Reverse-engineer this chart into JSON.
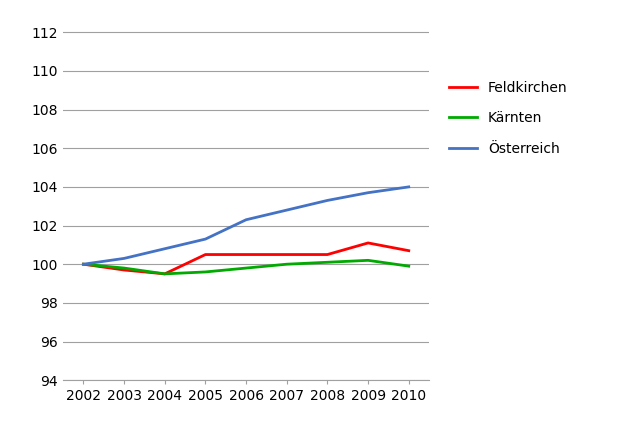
{
  "years": [
    2002,
    2003,
    2004,
    2005,
    2006,
    2007,
    2008,
    2009,
    2010
  ],
  "feldkirchen": [
    100.0,
    99.7,
    99.5,
    100.5,
    100.5,
    100.5,
    100.5,
    101.1,
    100.7
  ],
  "kaernten": [
    100.0,
    99.8,
    99.5,
    99.6,
    99.8,
    100.0,
    100.1,
    100.2,
    99.9
  ],
  "oesterreich": [
    100.0,
    100.3,
    100.8,
    101.3,
    102.3,
    102.8,
    103.3,
    103.7,
    104.0
  ],
  "colors": {
    "feldkirchen": "#ff0000",
    "kaernten": "#00aa00",
    "oesterreich": "#4472c4"
  },
  "legend_labels": [
    "Feldkirchen",
    "Kärnten",
    "Österreich"
  ],
  "ylim": [
    94,
    113
  ],
  "yticks": [
    94,
    96,
    98,
    100,
    102,
    104,
    106,
    108,
    110,
    112
  ],
  "xlim": [
    2001.5,
    2010.5
  ],
  "grid_color": "#a0a0a0",
  "line_width": 2.0,
  "background_color": "#ffffff",
  "tick_fontsize": 10,
  "legend_fontsize": 10
}
